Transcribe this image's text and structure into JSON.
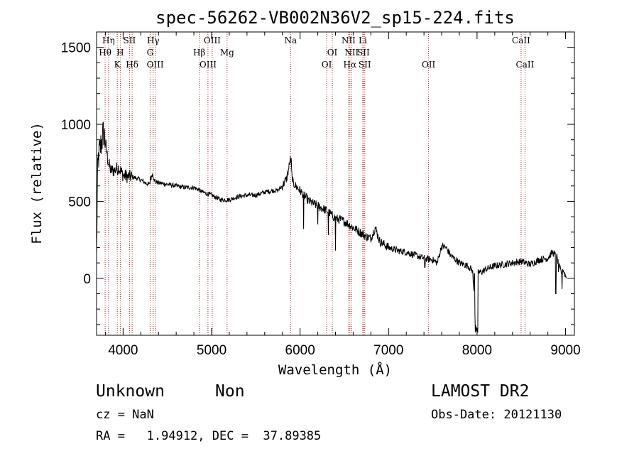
{
  "chart_data": {
    "type": "line",
    "title": "spec-56262-VB002N36V2_sp15-224.fits",
    "xlabel": "Wavelength (Å)",
    "ylabel": "Flux (relative)",
    "xlim": [
      3700,
      9100
    ],
    "ylim": [
      -370,
      1600
    ],
    "x_ticks": [
      4000,
      5000,
      6000,
      7000,
      8000,
      9000
    ],
    "y_ticks": [
      0,
      500,
      1000,
      1500
    ],
    "grid": false,
    "line_color": "#000000",
    "marker_color": "#b22222",
    "spectral_lines": [
      {
        "name": "Hη",
        "wavelength": 3835,
        "row": 0
      },
      {
        "name": "Hθ",
        "wavelength": 3797,
        "row": 1
      },
      {
        "name": "H",
        "wavelength": 3968,
        "row": 1
      },
      {
        "name": "K",
        "wavelength": 3934,
        "row": 2
      },
      {
        "name": "SII",
        "wavelength": 4072,
        "row": 0
      },
      {
        "name": "Hδ",
        "wavelength": 4102,
        "row": 2
      },
      {
        "name": "Hγ",
        "wavelength": 4340,
        "row": 0
      },
      {
        "name": "G",
        "wavelength": 4305,
        "row": 1
      },
      {
        "name": "OIII",
        "wavelength": 4363,
        "row": 2
      },
      {
        "name": "OIII",
        "wavelength": 5007,
        "row": 0
      },
      {
        "name": "Hβ",
        "wavelength": 4861,
        "row": 1
      },
      {
        "name": "OIII",
        "wavelength": 4959,
        "row": 2
      },
      {
        "name": "Mg",
        "wavelength": 5175,
        "row": 1
      },
      {
        "name": "Na",
        "wavelength": 5893,
        "row": 0
      },
      {
        "name": "OI",
        "wavelength": 6364,
        "row": 1
      },
      {
        "name": "OI",
        "wavelength": 6300,
        "row": 2
      },
      {
        "name": "NII",
        "wavelength": 6548,
        "row": 0
      },
      {
        "name": "Li",
        "wavelength": 6708,
        "row": 0
      },
      {
        "name": "NII",
        "wavelength": 6583,
        "row": 1
      },
      {
        "name": "SII",
        "wavelength": 6716,
        "row": 1
      },
      {
        "name": "Hα",
        "wavelength": 6563,
        "row": 2
      },
      {
        "name": "SII",
        "wavelength": 6731,
        "row": 2
      },
      {
        "name": "OII",
        "wavelength": 7452,
        "row": 2
      },
      {
        "name": "CaII",
        "wavelength": 8498,
        "row": 0
      },
      {
        "name": "CaII",
        "wavelength": 8542,
        "row": 2
      }
    ],
    "spectrum_anchors": {
      "x": [
        3700,
        3710,
        3720,
        3750,
        3780,
        3800,
        3830,
        3860,
        3900,
        3950,
        4000,
        4050,
        4100,
        4150,
        4200,
        4250,
        4300,
        4330,
        4360,
        4400,
        4500,
        4600,
        4700,
        4800,
        4900,
        5000,
        5100,
        5200,
        5300,
        5400,
        5500,
        5600,
        5700,
        5750,
        5800,
        5850,
        5880,
        5890,
        5900,
        5920,
        5950,
        6000,
        6100,
        6200,
        6300,
        6400,
        6500,
        6600,
        6700,
        6750,
        6800,
        6850,
        6900,
        7000,
        7100,
        7200,
        7300,
        7400,
        7500,
        7550,
        7600,
        7650,
        7700,
        7800,
        7900,
        7950,
        7990,
        8000,
        8010,
        8050,
        8100,
        8200,
        8300,
        8400,
        8500,
        8600,
        8700,
        8800,
        8850,
        8900,
        8930,
        8950,
        8970,
        8990,
        9010
      ],
      "y": [
        120,
        650,
        780,
        870,
        950,
        880,
        760,
        700,
        700,
        720,
        670,
        660,
        660,
        650,
        640,
        620,
        610,
        680,
        630,
        620,
        610,
        600,
        590,
        590,
        560,
        540,
        510,
        510,
        530,
        540,
        540,
        560,
        570,
        570,
        600,
        650,
        740,
        780,
        700,
        620,
        600,
        570,
        500,
        470,
        440,
        390,
        370,
        330,
        290,
        270,
        260,
        330,
        240,
        200,
        180,
        170,
        150,
        130,
        120,
        100,
        210,
        200,
        150,
        100,
        80,
        50,
        -350,
        -330,
        40,
        40,
        60,
        80,
        90,
        100,
        110,
        90,
        120,
        130,
        170,
        140,
        70,
        40,
        60,
        30,
        0
      ]
    },
    "spectrum_features": {
      "x": [
        4310,
        5900,
        6040,
        6200,
        6320,
        6400,
        7410,
        7970,
        7980,
        8005,
        8890,
        8920,
        8960
      ],
      "y": [
        660,
        780,
        320,
        350,
        280,
        180,
        70,
        30,
        -350,
        -350,
        -100,
        40,
        -70
      ]
    }
  },
  "info": {
    "object": "Unknown",
    "class": "Non",
    "survey": "LAMOST DR2",
    "cz": "cz = NaN",
    "radec": "RA =   1.94912, DEC =  37.89385",
    "obsdate": "Obs-Date: 20121130"
  }
}
